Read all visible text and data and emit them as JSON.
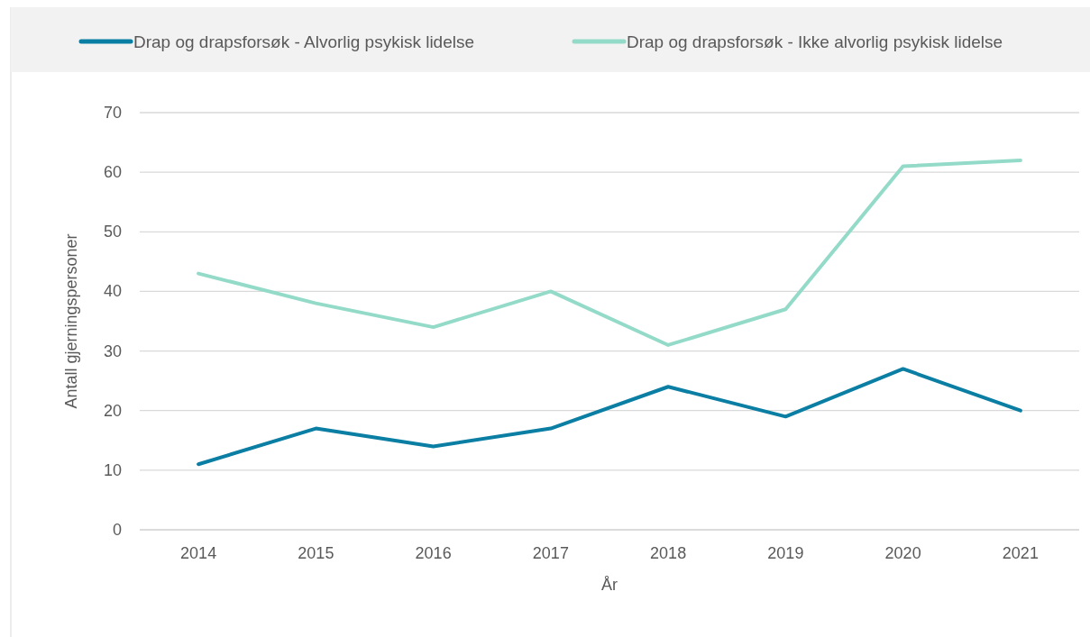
{
  "chart_data": {
    "type": "line",
    "xlabel": "År",
    "ylabel": "Antall gjerningspersoner",
    "categories": [
      "2014",
      "2015",
      "2016",
      "2017",
      "2018",
      "2019",
      "2020",
      "2021"
    ],
    "series": [
      {
        "name": "Drap og drapsforsøk - Alvorlig psykisk lidelse",
        "color": "#0b7ea3",
        "values": [
          11,
          17,
          14,
          17,
          24,
          19,
          27,
          20
        ]
      },
      {
        "name": "Drap og drapsforsøk - Ikke alvorlig psykisk lidelse",
        "color": "#93dbc8",
        "values": [
          43,
          38,
          34,
          40,
          31,
          37,
          61,
          62
        ]
      }
    ],
    "ylim": [
      0,
      70
    ],
    "yticks": [
      0,
      10,
      20,
      30,
      40,
      50,
      60,
      70
    ],
    "grid": "y",
    "legend": "top",
    "marker": "none",
    "line_style": "solid"
  }
}
